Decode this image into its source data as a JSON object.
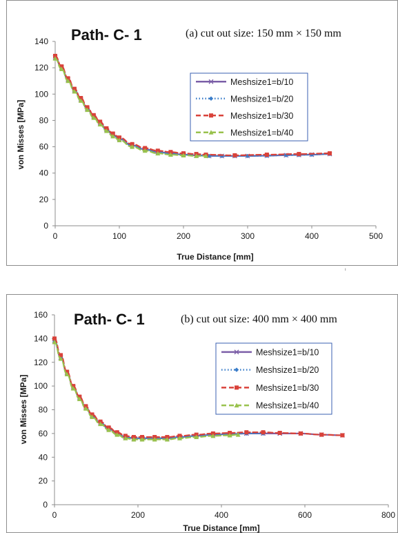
{
  "chart_data": [
    {
      "type": "line",
      "id": "a",
      "panel_title": "Path- C- 1",
      "caption": "(a) cut out size: 150 mm × 150 mm",
      "xlabel": "True Distance [mm]",
      "ylabel": "von Misses [MPa]",
      "xlim": [
        0,
        500
      ],
      "ylim": [
        0,
        140
      ],
      "x_ticks": [
        "0",
        "100",
        "200",
        "300",
        "400",
        "500"
      ],
      "y_ticks": [
        "0",
        "20",
        "40",
        "60",
        "80",
        "100",
        "120",
        "140"
      ],
      "legend_position": "right",
      "series": [
        {
          "name": "Meshsize1=b/10",
          "color": "#7b5ea7",
          "style": "solid",
          "marker": "x",
          "x": [
            0,
            10,
            20,
            30,
            40,
            50,
            60,
            70,
            80,
            90,
            100,
            120,
            140,
            160,
            180,
            200,
            220,
            240,
            260,
            280,
            300,
            330,
            360,
            380,
            400,
            428
          ],
          "y": [
            128,
            120,
            111,
            103,
            96,
            89,
            83,
            78,
            73,
            69,
            66,
            61,
            58,
            56,
            55,
            54,
            53.5,
            53,
            53,
            53,
            53,
            53.2,
            53.6,
            53.8,
            54,
            54.5
          ]
        },
        {
          "name": "Meshsize1=b/20",
          "color": "#3a7dc9",
          "style": "dotted",
          "marker": "diamond",
          "x": [
            0,
            10,
            20,
            30,
            40,
            50,
            60,
            70,
            80,
            90,
            100,
            120,
            140,
            160,
            180,
            200,
            220,
            240,
            260,
            280,
            300,
            330,
            360,
            380,
            400,
            428
          ],
          "y": [
            128,
            120,
            111,
            103,
            96,
            89,
            83,
            78,
            73,
            69,
            66,
            61,
            58,
            56,
            55,
            54,
            53.5,
            53,
            53,
            53,
            53,
            53.2,
            53.6,
            53.8,
            54,
            54.5
          ]
        },
        {
          "name": "Meshsize1=b/30",
          "color": "#d9423a",
          "style": "dashed",
          "marker": "square",
          "x": [
            0,
            10,
            20,
            30,
            40,
            50,
            60,
            70,
            80,
            90,
            100,
            120,
            140,
            160,
            180,
            200,
            220,
            235,
            280,
            330,
            380,
            428
          ],
          "y": [
            129,
            121,
            112,
            104,
            97,
            90,
            84,
            79,
            74,
            70,
            67,
            62,
            59,
            57,
            56,
            55,
            54.5,
            54,
            53.5,
            54,
            54.5,
            55
          ]
        },
        {
          "name": "Meshsize1=b/40",
          "color": "#99c24d",
          "style": "dashed",
          "marker": "triangle",
          "x": [
            0,
            10,
            20,
            30,
            40,
            50,
            60,
            70,
            80,
            90,
            100,
            120,
            140,
            160,
            180,
            200,
            220,
            235
          ],
          "y": [
            127,
            119,
            110,
            102,
            95,
            88,
            82,
            77,
            72,
            68,
            65,
            60,
            57,
            55,
            54,
            53.5,
            53,
            53
          ]
        }
      ]
    },
    {
      "type": "line",
      "id": "b",
      "panel_title": "Path- C- 1",
      "caption": "(b) cut out size: 400 mm × 400 mm",
      "xlabel": "True Distance [mm]",
      "ylabel": "von Misses [MPa]",
      "xlim": [
        0,
        800
      ],
      "ylim": [
        0,
        160
      ],
      "x_ticks": [
        "0",
        "200",
        "400",
        "600",
        "800"
      ],
      "y_ticks": [
        "0",
        "20",
        "40",
        "60",
        "80",
        "100",
        "120",
        "140",
        "160"
      ],
      "legend_position": "right",
      "series": [
        {
          "name": "Meshsize1=b/10",
          "color": "#7b5ea7",
          "style": "solid",
          "marker": "x",
          "x": [
            0,
            15,
            30,
            45,
            60,
            75,
            90,
            110,
            130,
            150,
            170,
            190,
            210,
            240,
            270,
            300,
            340,
            380,
            420,
            460,
            500,
            540,
            590,
            640,
            690
          ],
          "y": [
            138,
            124,
            111,
            99,
            90,
            82,
            75,
            69,
            64,
            60,
            57,
            56,
            56,
            56,
            56,
            57,
            58,
            59,
            59.5,
            60,
            60,
            60,
            60,
            59,
            58.5
          ]
        },
        {
          "name": "Meshsize1=b/20",
          "color": "#3a7dc9",
          "style": "dotted",
          "marker": "diamond",
          "x": [
            0,
            15,
            30,
            45,
            60,
            75,
            90,
            110,
            130,
            150,
            170,
            190,
            210,
            240,
            270,
            300,
            340,
            380,
            420,
            460,
            500
          ],
          "y": [
            138,
            124,
            111,
            99,
            90,
            82,
            75,
            69,
            64,
            60,
            57,
            56,
            56,
            56,
            56,
            57,
            58,
            59,
            59.5,
            60,
            60
          ]
        },
        {
          "name": "Meshsize1=b/30",
          "color": "#d9423a",
          "style": "dashed",
          "marker": "square",
          "x": [
            0,
            15,
            30,
            45,
            60,
            75,
            90,
            110,
            130,
            150,
            170,
            190,
            210,
            240,
            270,
            300,
            340,
            380,
            420,
            460,
            500,
            540,
            590,
            640,
            690
          ],
          "y": [
            140,
            126,
            112,
            100,
            91,
            83,
            76,
            70,
            65,
            61,
            58,
            57,
            57,
            57,
            57,
            58,
            59,
            60,
            60.5,
            61,
            61,
            60.5,
            60,
            59,
            58.5
          ]
        },
        {
          "name": "Meshsize1=b/40",
          "color": "#99c24d",
          "style": "dashed",
          "marker": "triangle",
          "x": [
            0,
            15,
            30,
            45,
            60,
            75,
            90,
            110,
            130,
            150,
            170,
            190,
            210,
            240,
            270,
            300,
            340,
            380,
            420,
            440
          ],
          "y": [
            137,
            123,
            110,
            98,
            89,
            81,
            74,
            68,
            63,
            59,
            56,
            55,
            55,
            55,
            55,
            56,
            57,
            58,
            58.5,
            59
          ]
        }
      ]
    }
  ]
}
